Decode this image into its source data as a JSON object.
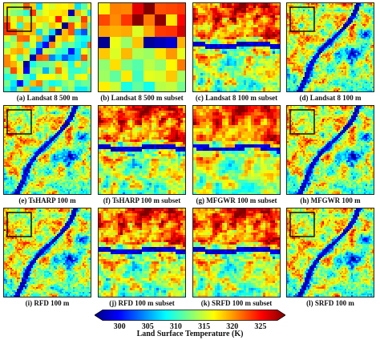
{
  "panels": [
    {
      "caption": "(a) Landsat 8 500 m",
      "kind": "full",
      "box": true,
      "block": 8
    },
    {
      "caption": "(b) Landsat 8 500 m subset",
      "kind": "subset",
      "block": 14
    },
    {
      "caption": "(c) Landsat 8 100 m subset",
      "kind": "subset",
      "block": 3
    },
    {
      "caption": "(d) Landsat 8 100 m",
      "kind": "full",
      "box": true,
      "block": 2
    },
    {
      "caption": "(e) TsHARP 100 m",
      "kind": "full",
      "box": true,
      "block": 2
    },
    {
      "caption": "(f) TsHARP 100 m subset",
      "kind": "subset",
      "block": 3
    },
    {
      "caption": "(g) MFGWR 100 m subset",
      "kind": "subset",
      "block": 4
    },
    {
      "caption": "(h) MFGWR 100 m",
      "kind": "full",
      "box": true,
      "block": 2
    },
    {
      "caption": "(i) RFD 100 m",
      "kind": "full",
      "box": true,
      "block": 2
    },
    {
      "caption": "(j) RFD 100 m subset",
      "kind": "subset",
      "block": 3
    },
    {
      "caption": "(k) SRFD 100 m subset",
      "kind": "subset",
      "block": 3
    },
    {
      "caption": "(l) SRFD 100 m",
      "kind": "full",
      "box": true,
      "block": 2
    }
  ],
  "colorbar": {
    "ticks": [
      "300",
      "305",
      "310",
      "315",
      "320",
      "325"
    ],
    "range": [
      297,
      328
    ],
    "label": "Land Surface Temperature (K)",
    "colors": [
      "#00007f",
      "#0000ff",
      "#007fff",
      "#00ffff",
      "#7fff7f",
      "#ffff00",
      "#ff7f00",
      "#ff0000",
      "#7f0000"
    ]
  }
}
